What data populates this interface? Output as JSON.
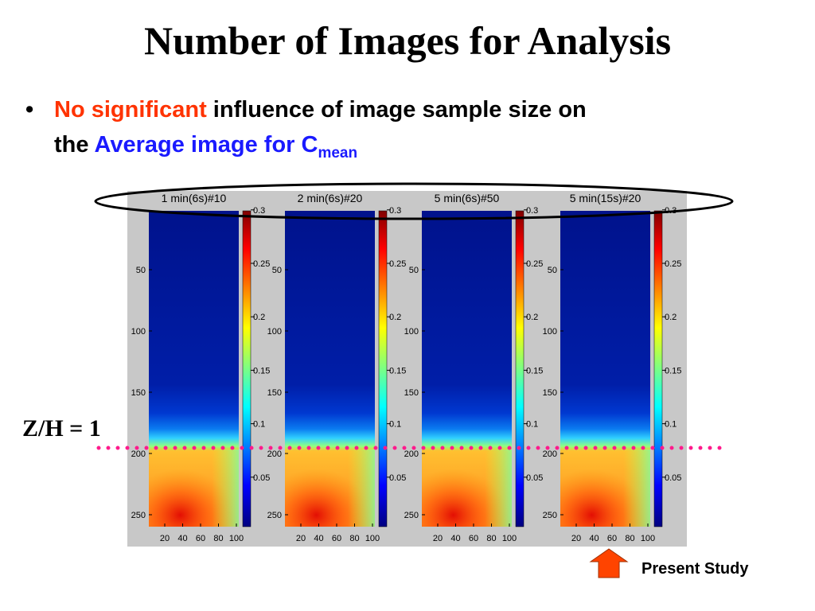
{
  "header": {
    "title": "Number of Images for Analysis"
  },
  "bullet": {
    "highlight": "No significant",
    "text_line1": "influence of image sample size on",
    "text_line2": "the",
    "term": "Average image for C",
    "subscript": "mean"
  },
  "panels": [
    {
      "title": "1 min(6s)#10"
    },
    {
      "title": "2 min(6s)#20"
    },
    {
      "title": "5 min(6s)#50"
    },
    {
      "title": "5 min(15s)#20"
    }
  ],
  "axes": {
    "y_ticks": [
      50,
      100,
      150,
      200,
      250
    ],
    "x_ticks": [
      20,
      40,
      60,
      80,
      100
    ],
    "colorbar_ticks": [
      0.3,
      0.25,
      0.2,
      0.15,
      0.1,
      0.05
    ]
  },
  "annotations": {
    "level": "Z/H = 1",
    "present": "Present Study"
  }
}
